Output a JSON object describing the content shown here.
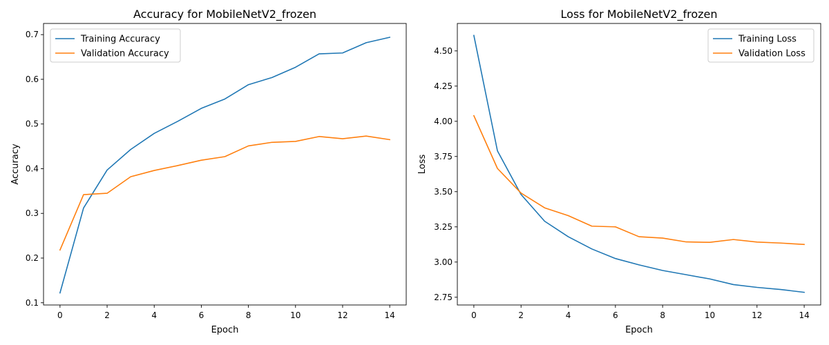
{
  "chart_data": [
    {
      "type": "line",
      "title": "Accuracy for MobileNetV2_frozen",
      "xlabel": "Epoch",
      "ylabel": "Accuracy",
      "xlim": [
        -0.7,
        14.7
      ],
      "ylim": [
        0.095,
        0.725
      ],
      "xticks": [
        0,
        2,
        4,
        6,
        8,
        10,
        12,
        14
      ],
      "yticks": [
        0.1,
        0.2,
        0.3,
        0.4,
        0.5,
        0.6,
        0.7
      ],
      "ytick_labels": [
        "0.1",
        "0.2",
        "0.3",
        "0.4",
        "0.5",
        "0.6",
        "0.7"
      ],
      "grid": false,
      "legend_position": "upper-left",
      "x": [
        0,
        1,
        2,
        3,
        4,
        5,
        6,
        7,
        8,
        9,
        10,
        11,
        12,
        13,
        14
      ],
      "series": [
        {
          "name": "Training Accuracy",
          "color": "#1f77b4",
          "values": [
            0.122,
            0.312,
            0.397,
            0.443,
            0.479,
            0.506,
            0.535,
            0.556,
            0.588,
            0.604,
            0.627,
            0.657,
            0.659,
            0.682,
            0.694
          ]
        },
        {
          "name": "Validation Accuracy",
          "color": "#ff7f0e",
          "values": [
            0.218,
            0.342,
            0.345,
            0.382,
            0.396,
            0.407,
            0.419,
            0.427,
            0.451,
            0.459,
            0.461,
            0.472,
            0.467,
            0.473,
            0.465
          ]
        }
      ]
    },
    {
      "type": "line",
      "title": "Loss for MobileNetV2_frozen",
      "xlabel": "Epoch",
      "ylabel": "Loss",
      "xlim": [
        -0.7,
        14.7
      ],
      "ylim": [
        2.695,
        4.695
      ],
      "xticks": [
        0,
        2,
        4,
        6,
        8,
        10,
        12,
        14
      ],
      "yticks": [
        2.75,
        3.0,
        3.25,
        3.5,
        3.75,
        4.0,
        4.25,
        4.5
      ],
      "ytick_labels": [
        "2.75",
        "3.00",
        "3.25",
        "3.50",
        "3.75",
        "4.00",
        "4.25",
        "4.50"
      ],
      "grid": false,
      "legend_position": "upper-right",
      "x": [
        0,
        1,
        2,
        3,
        4,
        5,
        6,
        7,
        8,
        9,
        10,
        11,
        12,
        13,
        14
      ],
      "series": [
        {
          "name": "Training Loss",
          "color": "#1f77b4",
          "values": [
            4.61,
            3.79,
            3.48,
            3.29,
            3.18,
            3.093,
            3.025,
            2.98,
            2.94,
            2.91,
            2.88,
            2.84,
            2.82,
            2.805,
            2.785
          ]
        },
        {
          "name": "Validation Loss",
          "color": "#ff7f0e",
          "values": [
            4.04,
            3.665,
            3.49,
            3.385,
            3.33,
            3.255,
            3.25,
            3.18,
            3.17,
            3.143,
            3.14,
            3.16,
            3.142,
            3.135,
            3.125
          ]
        }
      ]
    }
  ]
}
